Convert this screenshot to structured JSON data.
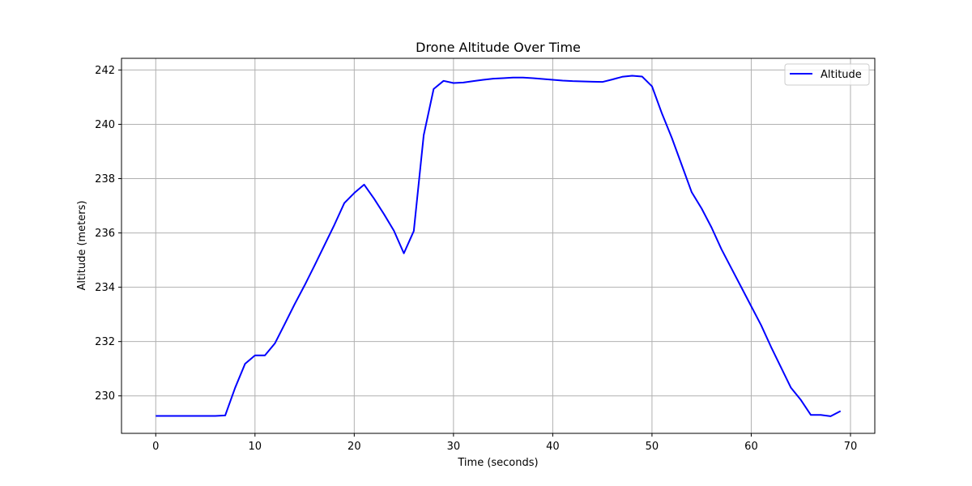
{
  "chart_data": {
    "type": "line",
    "title": "Drone Altitude Over Time",
    "xlabel": "Time (seconds)",
    "ylabel": "Altitude (meters)",
    "xlim": [
      -3.45,
      72.45
    ],
    "ylim": [
      228.62,
      242.43
    ],
    "xticks": [
      0,
      10,
      20,
      30,
      40,
      50,
      60,
      70
    ],
    "yticks": [
      230,
      232,
      234,
      236,
      238,
      240,
      242
    ],
    "grid": true,
    "legend": "top-right",
    "color": "#0000ff",
    "series": [
      {
        "name": "Altitude",
        "x": [
          0,
          1,
          2,
          3,
          4,
          5,
          6,
          7,
          8,
          9,
          10,
          11,
          12,
          13,
          14,
          15,
          16,
          17,
          18,
          19,
          20,
          21,
          22,
          23,
          24,
          25,
          26,
          27,
          28,
          29,
          30,
          31,
          32,
          33,
          34,
          35,
          36,
          37,
          38,
          39,
          40,
          41,
          42,
          43,
          44,
          45,
          46,
          47,
          48,
          49,
          50,
          51,
          52,
          53,
          54,
          55,
          56,
          57,
          58,
          59,
          60,
          61,
          62,
          63,
          64,
          65,
          66,
          67,
          68,
          69
        ],
        "y": [
          229.26,
          229.26,
          229.26,
          229.26,
          229.26,
          229.26,
          229.26,
          229.28,
          230.3,
          231.18,
          231.49,
          231.49,
          231.93,
          232.65,
          233.38,
          234.07,
          234.8,
          235.55,
          236.3,
          237.1,
          237.47,
          237.78,
          237.26,
          236.69,
          236.08,
          235.25,
          236.07,
          239.6,
          241.3,
          241.6,
          241.52,
          241.54,
          241.59,
          241.64,
          241.68,
          241.7,
          241.72,
          241.72,
          241.7,
          241.67,
          241.64,
          241.61,
          241.59,
          241.58,
          241.57,
          241.56,
          241.65,
          241.75,
          241.79,
          241.76,
          241.4,
          240.4,
          239.5,
          238.5,
          237.5,
          236.9,
          236.2,
          235.4,
          234.7,
          234.0,
          233.3,
          232.6,
          231.8,
          231.05,
          230.3,
          229.85,
          229.3,
          229.3,
          229.25,
          229.44
        ]
      }
    ]
  }
}
